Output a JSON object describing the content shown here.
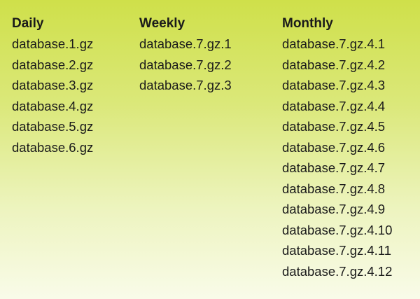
{
  "columns": [
    {
      "title": "Daily",
      "items": [
        "database.1.gz",
        "database.2.gz",
        "database.3.gz",
        "database.4.gz",
        "database.5.gz",
        "database.6.gz"
      ]
    },
    {
      "title": "Weekly",
      "items": [
        "database.7.gz.1",
        "database.7.gz.2",
        "database.7.gz.3"
      ]
    },
    {
      "title": "Monthly",
      "items": [
        "database.7.gz.4.1",
        "database.7.gz.4.2",
        "database.7.gz.4.3",
        "database.7.gz.4.4",
        "database.7.gz.4.5",
        "database.7.gz.4.6",
        "database.7.gz.4.7",
        "database.7.gz.4.8",
        "database.7.gz.4.9",
        "database.7.gz.4.10",
        "database.7.gz.4.11",
        "database.7.gz.4.12"
      ]
    }
  ]
}
